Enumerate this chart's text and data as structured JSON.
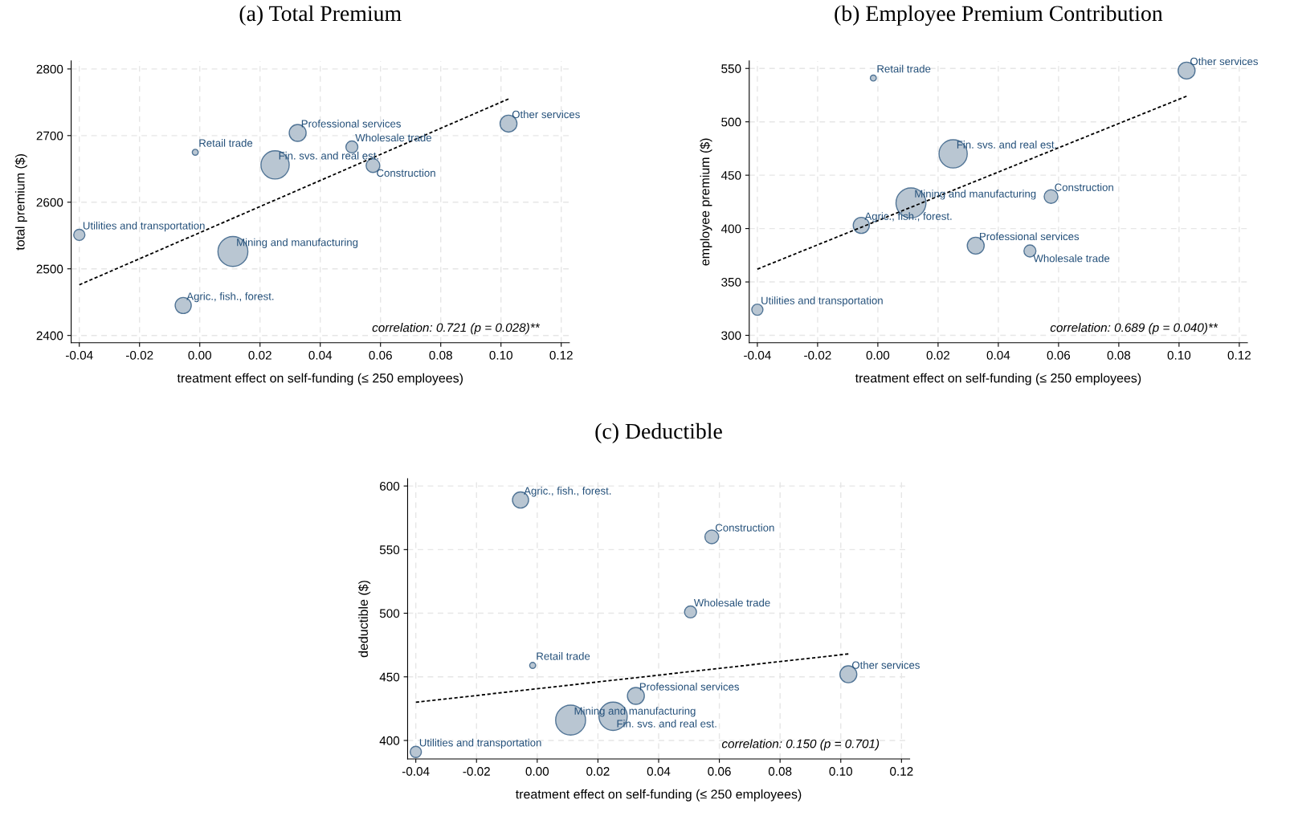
{
  "chart_data": [
    {
      "type": "bubble",
      "title": "(a) Total Premium",
      "xlabel": "treatment effect on self-funding (≤ 250 employees)",
      "ylabel": "total premium ($)",
      "xlim": [
        -0.0427,
        0.1227
      ],
      "ylim": [
        2389,
        2812
      ],
      "xticks": [
        {
          "value": -0.04,
          "label": "-0.04"
        },
        {
          "value": -0.02,
          "label": "-0.02"
        },
        {
          "value": 0,
          "label": "0.00"
        },
        {
          "value": 0.02,
          "label": "0.02"
        },
        {
          "value": 0.04,
          "label": "0.04"
        },
        {
          "value": 0.06,
          "label": "0.06"
        },
        {
          "value": 0.08,
          "label": "0.08"
        },
        {
          "value": 0.1,
          "label": "0.10"
        },
        {
          "value": 0.12,
          "label": "0.12"
        }
      ],
      "yticks": [
        2400,
        2500,
        2600,
        2700,
        2800
      ],
      "grid": true,
      "legend": false,
      "series": [
        {
          "color": "#b5c3d0",
          "x": [
            -0.04,
            -0.0055,
            -0.0015,
            0.011,
            0.025,
            0.0325,
            0.0505,
            0.0575,
            0.1025
          ],
          "values": [
            2551,
            2445,
            2675,
            2526,
            2656,
            2704,
            2683,
            2655,
            2718
          ],
          "sizes": [
            0.14,
            0.29,
            0.04,
            1,
            0.89,
            0.32,
            0.16,
            0.21,
            0.32
          ]
        },
        {
          "type": "line",
          "color": "#000000",
          "line_style": "dashed",
          "marker": "none",
          "x": [
            -0.04,
            0.1025
          ],
          "values": [
            2476,
            2755
          ]
        }
      ],
      "annotations": [
        {
          "text": "Utilities and transportation",
          "x": -0.04,
          "y": 2551
        },
        {
          "text": "Agric., fish., forest.",
          "x": -0.0055,
          "y": 2445
        },
        {
          "text": "Retail trade",
          "x": -0.0015,
          "y": 2675
        },
        {
          "text": "Mining and manufacturing",
          "x": 0.011,
          "y": 2526
        },
        {
          "text": "Fin. svs. and real est.",
          "x": 0.025,
          "y": 2656
        },
        {
          "text": "Professional services",
          "x": 0.0325,
          "y": 2704
        },
        {
          "text": "Wholesale trade",
          "x": 0.0505,
          "y": 2683
        },
        {
          "text": "Construction",
          "x": 0.0575,
          "y": 2655
        },
        {
          "text": "Other services",
          "x": 0.1025,
          "y": 2718
        },
        "correlation: 0.721 (p = 0.028)**"
      ]
    },
    {
      "type": "bubble",
      "title": "(b) Employee Premium Contribution",
      "xlabel": "treatment effect on self-funding (≤ 250 employees)",
      "ylabel": "employee premium ($)",
      "xlim": [
        -0.0427,
        0.1227
      ],
      "ylim": [
        293,
        557
      ],
      "xticks": [
        {
          "value": -0.04,
          "label": "-0.04"
        },
        {
          "value": -0.02,
          "label": "-0.02"
        },
        {
          "value": 0,
          "label": "0.00"
        },
        {
          "value": 0.02,
          "label": "0.02"
        },
        {
          "value": 0.04,
          "label": "0.04"
        },
        {
          "value": 0.06,
          "label": "0.06"
        },
        {
          "value": 0.08,
          "label": "0.08"
        },
        {
          "value": 0.1,
          "label": "0.10"
        },
        {
          "value": 0.12,
          "label": "0.12"
        }
      ],
      "yticks": [
        300,
        350,
        400,
        450,
        500,
        550
      ],
      "grid": true,
      "legend": false,
      "series": [
        {
          "color": "#b5c3d0",
          "x": [
            -0.04,
            -0.0055,
            -0.0015,
            0.011,
            0.025,
            0.0325,
            0.0505,
            0.0575,
            0.1025
          ],
          "values": [
            324,
            403,
            541,
            424,
            470,
            384,
            379,
            430,
            548
          ],
          "sizes": [
            0.14,
            0.29,
            0.04,
            1,
            0.89,
            0.32,
            0.16,
            0.21,
            0.32
          ]
        },
        {
          "type": "line",
          "color": "#000000",
          "line_style": "dashed",
          "marker": "none",
          "x": [
            -0.04,
            0.1025
          ],
          "values": [
            362,
            524
          ]
        }
      ],
      "annotations": [
        {
          "text": "Utilities and transportation",
          "x": -0.04,
          "y": 324
        },
        {
          "text": "Agric., fish., forest.",
          "x": -0.0055,
          "y": 403
        },
        {
          "text": "Retail trade",
          "x": -0.0015,
          "y": 541
        },
        {
          "text": "Mining and manufacturing",
          "x": 0.011,
          "y": 424
        },
        {
          "text": "Fin. svs. and real est.",
          "x": 0.025,
          "y": 470
        },
        {
          "text": "Professional services",
          "x": 0.0325,
          "y": 384
        },
        {
          "text": "Wholesale trade",
          "x": 0.0505,
          "y": 379
        },
        {
          "text": "Construction",
          "x": 0.0575,
          "y": 430
        },
        {
          "text": "Other services",
          "x": 0.1025,
          "y": 548
        },
        "correlation: 0.689 (p = 0.040)**"
      ]
    },
    {
      "type": "bubble",
      "title": "(c) Deductible",
      "xlabel": "treatment effect on self-funding (≤ 250 employees)",
      "ylabel": "deductible ($)",
      "xlim": [
        -0.0427,
        0.1227
      ],
      "ylim": [
        385.5,
        605.7
      ],
      "xticks": [
        {
          "value": -0.04,
          "label": "-0.04"
        },
        {
          "value": -0.02,
          "label": "-0.02"
        },
        {
          "value": 0,
          "label": "0.00"
        },
        {
          "value": 0.02,
          "label": "0.02"
        },
        {
          "value": 0.04,
          "label": "0.04"
        },
        {
          "value": 0.06,
          "label": "0.06"
        },
        {
          "value": 0.08,
          "label": "0.08"
        },
        {
          "value": 0.1,
          "label": "0.10"
        },
        {
          "value": 0.12,
          "label": "0.12"
        }
      ],
      "yticks": [
        400,
        450,
        500,
        550,
        600
      ],
      "grid": true,
      "legend": false,
      "series": [
        {
          "color": "#b5c3d0",
          "x": [
            -0.04,
            -0.0055,
            -0.0015,
            0.011,
            0.025,
            0.0325,
            0.0505,
            0.0575,
            0.1025
          ],
          "values": [
            391,
            589,
            459,
            416,
            419,
            435,
            501,
            560,
            452
          ],
          "sizes": [
            0.14,
            0.29,
            0.04,
            1,
            0.89,
            0.32,
            0.16,
            0.21,
            0.32
          ]
        },
        {
          "type": "line",
          "color": "#000000",
          "line_style": "dashed",
          "marker": "none",
          "x": [
            -0.04,
            0.1025
          ],
          "values": [
            430,
            468
          ]
        }
      ],
      "annotations": [
        {
          "text": "Utilities and transportation",
          "x": -0.04,
          "y": 391
        },
        {
          "text": "Agric., fish., forest.",
          "x": -0.0055,
          "y": 589
        },
        {
          "text": "Retail trade",
          "x": -0.0015,
          "y": 459
        },
        {
          "text": "Mining and manufacturing",
          "x": 0.011,
          "y": 416
        },
        {
          "text": "Fin. svs. and real est.",
          "x": 0.025,
          "y": 419
        },
        {
          "text": "Professional services",
          "x": 0.0325,
          "y": 435
        },
        {
          "text": "Wholesale trade",
          "x": 0.0505,
          "y": 501
        },
        {
          "text": "Construction",
          "x": 0.0575,
          "y": 560
        },
        {
          "text": "Other services",
          "x": 0.1025,
          "y": 452
        },
        "correlation: 0.150 (p = 0.701)"
      ]
    }
  ]
}
